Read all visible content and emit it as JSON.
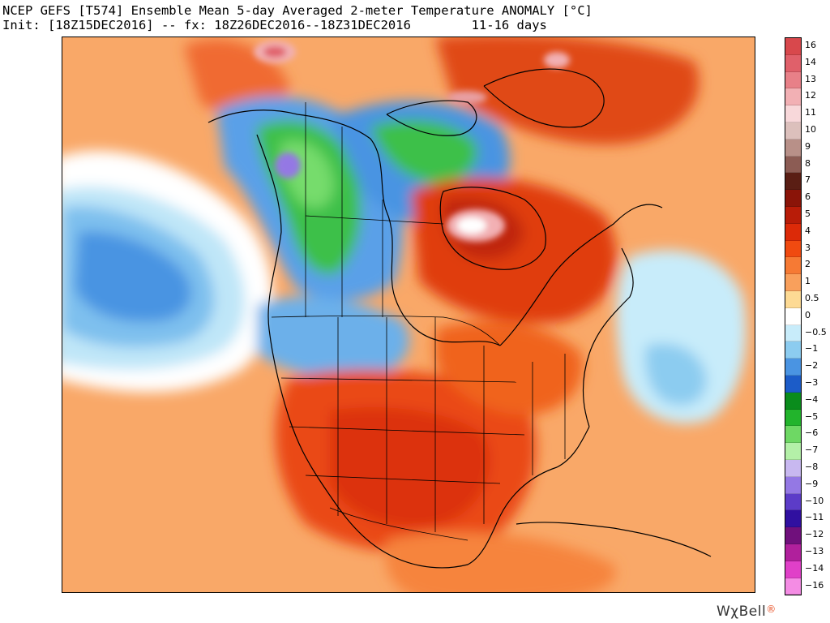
{
  "header": {
    "title_line1": "NCEP GEFS [T574] Ensemble Mean 5-day Averaged 2-meter Temperature ANOMALY [°C]",
    "title_line2": "Init: [18Z15DEC2016] -- fx: 18Z26DEC2016--18Z31DEC2016        11-16 days"
  },
  "map": {
    "region": "North America",
    "field": "2-meter temperature anomaly"
  },
  "colorbar": {
    "levels": [
      {
        "label": "16",
        "color": "#d8484c"
      },
      {
        "label": "14",
        "color": "#e0606a"
      },
      {
        "label": "13",
        "color": "#e88088"
      },
      {
        "label": "12",
        "color": "#f2b0b4"
      },
      {
        "label": "11",
        "color": "#f8d8da"
      },
      {
        "label": "10",
        "color": "#dcc0bc"
      },
      {
        "label": "9",
        "color": "#b89088"
      },
      {
        "label": "8",
        "color": "#8c5c54"
      },
      {
        "label": "7",
        "color": "#5a1e14"
      },
      {
        "label": "6",
        "color": "#8a1408"
      },
      {
        "label": "5",
        "color": "#b81c08"
      },
      {
        "label": "4",
        "color": "#dc2a08"
      },
      {
        "label": "3",
        "color": "#f04a10"
      },
      {
        "label": "2",
        "color": "#f67a34"
      },
      {
        "label": "1",
        "color": "#f9a05c"
      },
      {
        "label": "0.5",
        "color": "#fdda94"
      },
      {
        "label": "0",
        "color": "#ffffff"
      },
      {
        "label": "−0.5",
        "color": "#c8ecfa"
      },
      {
        "label": "−1",
        "color": "#8cccf0"
      },
      {
        "label": "−2",
        "color": "#4a94e2"
      },
      {
        "label": "−3",
        "color": "#1c5cc8"
      },
      {
        "label": "−4",
        "color": "#0a8c1c"
      },
      {
        "label": "−5",
        "color": "#22b42c"
      },
      {
        "label": "−6",
        "color": "#6ed864"
      },
      {
        "label": "−7",
        "color": "#b4f0a8"
      },
      {
        "label": "−8",
        "color": "#c8b8f0"
      },
      {
        "label": "−9",
        "color": "#9478e4"
      },
      {
        "label": "−10",
        "color": "#5c3cc8"
      },
      {
        "label": "−11",
        "color": "#3010a0"
      },
      {
        "label": "−12",
        "color": "#70107c"
      },
      {
        "label": "−13",
        "color": "#b0209c"
      },
      {
        "label": "−14",
        "color": "#e040c8"
      },
      {
        "label": "−16",
        "color": "#f48ce4"
      }
    ]
  },
  "brand": {
    "text": "WχBell",
    "mark": "®"
  }
}
